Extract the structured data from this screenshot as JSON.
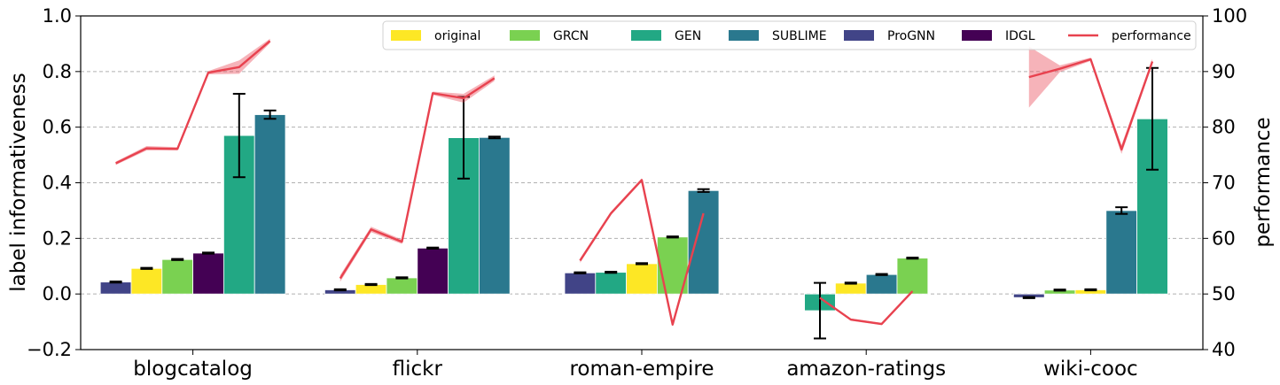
{
  "chart_data": {
    "type": "bar",
    "xlabel": "",
    "ylabel": "label informativeness",
    "y2label": "performance",
    "ylim": [
      -0.2,
      1.0
    ],
    "y2lim": [
      40,
      100
    ],
    "yticks": [
      "−0.2",
      "0.0",
      "0.2",
      "0.4",
      "0.6",
      "0.8",
      "1.0"
    ],
    "y2ticks": [
      "40",
      "50",
      "60",
      "70",
      "80",
      "90",
      "100"
    ],
    "grid": "horizontal dashed",
    "legend_placement": "top-right",
    "colors": {
      "original": "#fde725",
      "GRCN": "#7ad151",
      "GEN": "#22a884",
      "SUBLIME": "#2a788e",
      "ProGNN": "#414487",
      "IDGL": "#440154",
      "performance": "#e8424f"
    },
    "legend": [
      {
        "name": "original",
        "kind": "bar"
      },
      {
        "name": "GRCN",
        "kind": "bar"
      },
      {
        "name": "GEN",
        "kind": "bar"
      },
      {
        "name": "SUBLIME",
        "kind": "bar"
      },
      {
        "name": "ProGNN",
        "kind": "bar"
      },
      {
        "name": "IDGL",
        "kind": "bar"
      },
      {
        "name": "performance",
        "kind": "line"
      }
    ],
    "groups": [
      {
        "category": "blogcatalog",
        "bars": [
          {
            "method": "ProGNN",
            "value": 0.043,
            "err": 0.002
          },
          {
            "method": "original",
            "value": 0.092,
            "err": 0.002
          },
          {
            "method": "GRCN",
            "value": 0.124,
            "err": 0.002
          },
          {
            "method": "IDGL",
            "value": 0.147,
            "err": 0.002
          },
          {
            "method": "GEN",
            "value": 0.57,
            "err": 0.15
          },
          {
            "method": "SUBLIME",
            "value": 0.645,
            "err": 0.015
          }
        ],
        "performance": [
          73.5,
          76.2,
          76.1,
          89.8,
          90.8,
          95.5
        ],
        "performance_band": [
          0.3,
          0.4,
          0.3,
          0.3,
          1.2,
          0.4
        ]
      },
      {
        "category": "flickr",
        "bars": [
          {
            "method": "ProGNN",
            "value": 0.015,
            "err": 0.002
          },
          {
            "method": "original",
            "value": 0.034,
            "err": 0.002
          },
          {
            "method": "GRCN",
            "value": 0.058,
            "err": 0.002
          },
          {
            "method": "IDGL",
            "value": 0.165,
            "err": 0.002
          },
          {
            "method": "GEN",
            "value": 0.562,
            "err": 0.147
          },
          {
            "method": "SUBLIME",
            "value": 0.563,
            "err": 0.003
          }
        ],
        "performance": [
          52.8,
          61.6,
          59.4,
          86.1,
          85.2,
          88.8
        ],
        "performance_band": [
          0.6,
          0.5,
          0.4,
          0.3,
          0.8,
          0.5
        ]
      },
      {
        "category": "roman-empire",
        "bars": [
          {
            "method": "ProGNN",
            "value": 0.076,
            "err": 0.002
          },
          {
            "method": "GEN",
            "value": 0.078,
            "err": 0.002
          },
          {
            "method": "original",
            "value": 0.109,
            "err": 0.002
          },
          {
            "method": "GRCN",
            "value": 0.205,
            "err": 0.002
          },
          {
            "method": "SUBLIME",
            "value": 0.372,
            "err": 0.005
          }
        ],
        "performance": [
          56.0,
          64.5,
          70.5,
          44.5,
          64.5
        ],
        "performance_band": [
          0.4,
          0.3,
          0.3,
          0.3,
          0.3
        ]
      },
      {
        "category": "amazon-ratings",
        "bars": [
          {
            "method": "GEN",
            "value": -0.06,
            "err": 0.1
          },
          {
            "method": "original",
            "value": 0.039,
            "err": 0.002
          },
          {
            "method": "SUBLIME",
            "value": 0.07,
            "err": 0.002
          },
          {
            "method": "GRCN",
            "value": 0.129,
            "err": 0.002
          }
        ],
        "performance": [
          49.3,
          45.4,
          44.6,
          50.5
        ],
        "performance_band": [
          0.2,
          0.2,
          0.2,
          0.2
        ]
      },
      {
        "category": "wiki-cooc",
        "bars": [
          {
            "method": "ProGNN",
            "value": -0.013,
            "err": 0.002
          },
          {
            "method": "GRCN",
            "value": 0.014,
            "err": 0.002
          },
          {
            "method": "original",
            "value": 0.015,
            "err": 0.002
          },
          {
            "method": "SUBLIME",
            "value": 0.3,
            "err": 0.012
          },
          {
            "method": "GEN",
            "value": 0.63,
            "err": 0.183
          }
        ],
        "performance": [
          89.0,
          90.5,
          92.2,
          76.0,
          91.8
        ],
        "performance_band": [
          5.5,
          0.6,
          0.3,
          0.8,
          0.5
        ]
      }
    ]
  }
}
